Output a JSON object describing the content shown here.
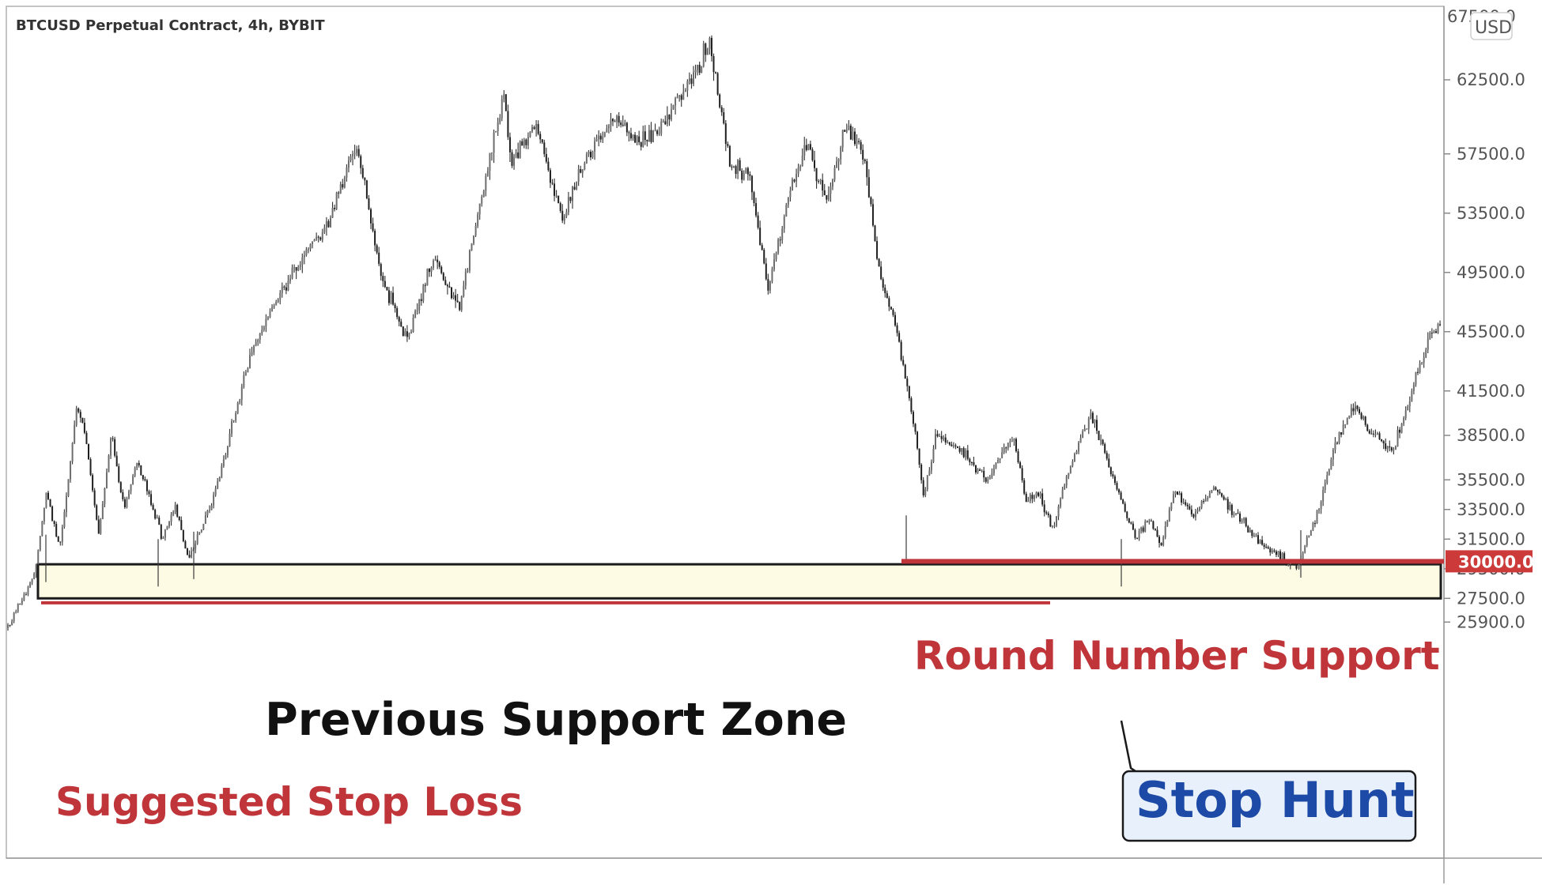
{
  "chart_data": {
    "type": "candlestick",
    "title": "BTCUSD Perpetual Contract, 4h, BYBIT",
    "currency": "USD",
    "ylim": [
      24300,
      67500
    ],
    "y_ticks": [
      62500.0,
      57500.0,
      53500.0,
      49500.0,
      45500.0,
      41500.0,
      38500.0,
      35500.0,
      33500.0,
      31500.0,
      29500.0,
      27500.0,
      25900.0
    ],
    "y_tick_labels": [
      "62500.0",
      "57500.0",
      "53500.0",
      "49500.0",
      "45500.0",
      "41500.0",
      "38500.0",
      "35500.0",
      "33500.0",
      "31500.0",
      "29500.0",
      "27500.0",
      "25900.0"
    ],
    "top_tick_label": "67500.0",
    "price_marker": {
      "value": 30000.0,
      "label": "30000.0",
      "color": "#cc3a3a"
    },
    "grid": false,
    "price_path": [
      [
        0.0,
        25500
      ],
      [
        0.02,
        29000
      ],
      [
        0.03,
        34800
      ],
      [
        0.04,
        30800
      ],
      [
        0.045,
        35500
      ],
      [
        0.05,
        41500
      ],
      [
        0.06,
        38500
      ],
      [
        0.07,
        31500
      ],
      [
        0.08,
        38800
      ],
      [
        0.09,
        33500
      ],
      [
        0.1,
        36800
      ],
      [
        0.12,
        31500
      ],
      [
        0.13,
        33800
      ],
      [
        0.14,
        30000
      ],
      [
        0.16,
        34500
      ],
      [
        0.19,
        44500
      ],
      [
        0.22,
        49500
      ],
      [
        0.25,
        53000
      ],
      [
        0.27,
        58300
      ],
      [
        0.29,
        49000
      ],
      [
        0.31,
        45000
      ],
      [
        0.33,
        50500
      ],
      [
        0.35,
        47000
      ],
      [
        0.37,
        56000
      ],
      [
        0.385,
        61500
      ],
      [
        0.39,
        57000
      ],
      [
        0.41,
        59500
      ],
      [
        0.43,
        53000
      ],
      [
        0.45,
        57500
      ],
      [
        0.47,
        59800
      ],
      [
        0.49,
        58200
      ],
      [
        0.51,
        59500
      ],
      [
        0.53,
        62500
      ],
      [
        0.545,
        65000
      ],
      [
        0.55,
        62000
      ],
      [
        0.56,
        57000
      ],
      [
        0.575,
        56000
      ],
      [
        0.59,
        48500
      ],
      [
        0.605,
        54500
      ],
      [
        0.62,
        58500
      ],
      [
        0.635,
        54000
      ],
      [
        0.65,
        59500
      ],
      [
        0.665,
        57000
      ],
      [
        0.675,
        50000
      ],
      [
        0.69,
        45500
      ],
      [
        0.705,
        38000
      ],
      [
        0.71,
        34000
      ],
      [
        0.72,
        38500
      ],
      [
        0.74,
        37500
      ],
      [
        0.76,
        35500
      ],
      [
        0.78,
        38500
      ],
      [
        0.79,
        34000
      ],
      [
        0.8,
        34500
      ],
      [
        0.81,
        32200
      ],
      [
        0.825,
        36500
      ],
      [
        0.84,
        40000
      ],
      [
        0.86,
        35000
      ],
      [
        0.875,
        31500
      ],
      [
        0.885,
        33000
      ],
      [
        0.895,
        31000
      ],
      [
        0.905,
        35000
      ],
      [
        0.92,
        33000
      ],
      [
        0.935,
        35000
      ],
      [
        0.95,
        33500
      ],
      [
        0.965,
        32000
      ],
      [
        0.975,
        31000
      ],
      [
        0.985,
        30500
      ],
      [
        1.0,
        29500
      ]
    ],
    "post_rally": [
      [
        0.0,
        29500
      ],
      [
        0.03,
        33000
      ],
      [
        0.06,
        38000
      ],
      [
        0.09,
        40500
      ],
      [
        0.12,
        38500
      ],
      [
        0.15,
        37500
      ],
      [
        0.17,
        40000
      ],
      [
        0.19,
        43000
      ],
      [
        0.21,
        45500
      ],
      [
        0.23,
        46000
      ]
    ],
    "annotations": {
      "support_zone": {
        "label": "Previous Support Zone",
        "range": [
          27500,
          29800
        ],
        "fill": "#fdfbe3",
        "border": "#1a1a1a"
      },
      "round_number": {
        "label": "Round Number Support",
        "value": 30000,
        "color": "#c0353a"
      },
      "stop_loss": {
        "label": "Suggested Stop Loss",
        "value": 27200,
        "color": "#c0353a"
      },
      "stop_hunt": {
        "label": "Stop Hunt",
        "color": "#1d4aa6",
        "fill": "#e8f1fb"
      }
    }
  }
}
